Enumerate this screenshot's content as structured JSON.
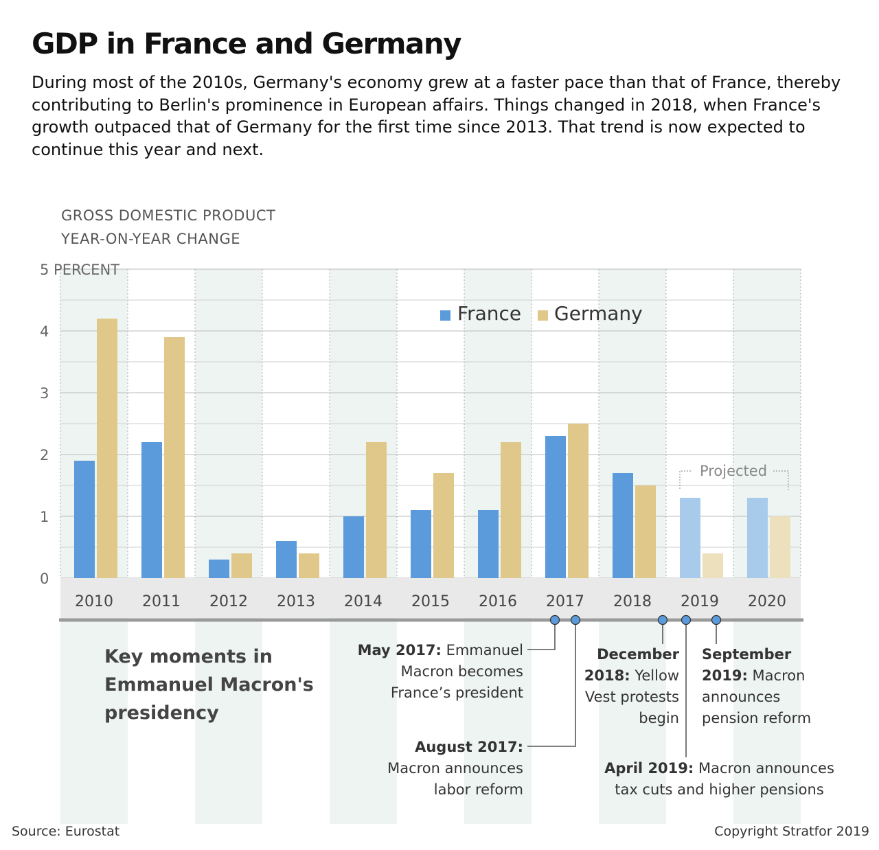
{
  "title": "GDP in France and Germany",
  "subtitle": "During most of the 2010s, Germany's economy grew at a faster pace than that of France, thereby contributing to Berlin's prominence in European affairs. Things changed in 2018, when France's growth outpaced that of Germany for the first time since 2013. That trend is now expected to continue this year and next.",
  "axis_title_line1": "GROSS DOMESTIC PRODUCT",
  "axis_title_line2": "YEAR-ON-YEAR CHANGE",
  "legend": {
    "france": "France",
    "germany": "Germany"
  },
  "projected_label": "Projected",
  "key_moments_heading": "Key moments in Emmanuel Macron's presidency",
  "events": {
    "may2017": {
      "date": "May 2017:",
      "text": "Emmanuel Macron becomes France’s president"
    },
    "aug2017": {
      "date": "August 2017:",
      "text": "Macron announces labor reform"
    },
    "dec2018": {
      "date": "December 2018:",
      "text": "Yellow Vest protests begin"
    },
    "apr2019": {
      "date": "April 2019:",
      "text": "Macron announces tax cuts and higher pensions"
    },
    "sep2019": {
      "date": "September 2019:",
      "text": "Macron announces pension reform"
    }
  },
  "source": "Source: Eurostat",
  "copyright": "Copyright Stratfor 2019",
  "colors": {
    "france": "#5b9bdc",
    "germany": "#e0c78a",
    "france_projected": "#a9cbeb",
    "germany_projected": "#ede0bd",
    "band": "#eef4f1",
    "timeline": "#9a9a9a"
  },
  "chart_data": {
    "type": "bar",
    "categories": [
      "2010",
      "2011",
      "2012",
      "2013",
      "2014",
      "2015",
      "2016",
      "2017",
      "2018",
      "2019",
      "2020"
    ],
    "series": [
      {
        "name": "France",
        "values": [
          1.9,
          2.2,
          0.3,
          0.6,
          1.0,
          1.1,
          1.1,
          2.3,
          1.7,
          1.3,
          1.3
        ]
      },
      {
        "name": "Germany",
        "values": [
          4.2,
          3.9,
          0.4,
          0.4,
          2.2,
          1.7,
          2.2,
          2.5,
          1.5,
          0.4,
          1.0
        ]
      }
    ],
    "projected_categories": [
      "2019",
      "2020"
    ],
    "ylim": [
      0,
      5
    ],
    "yticks": [
      0,
      1,
      2,
      3,
      4,
      5
    ],
    "ytick_labels": [
      "0",
      "1",
      "2",
      "3",
      "4",
      "5 PERCENT"
    ],
    "grid": true,
    "legend_position": "top-right"
  }
}
